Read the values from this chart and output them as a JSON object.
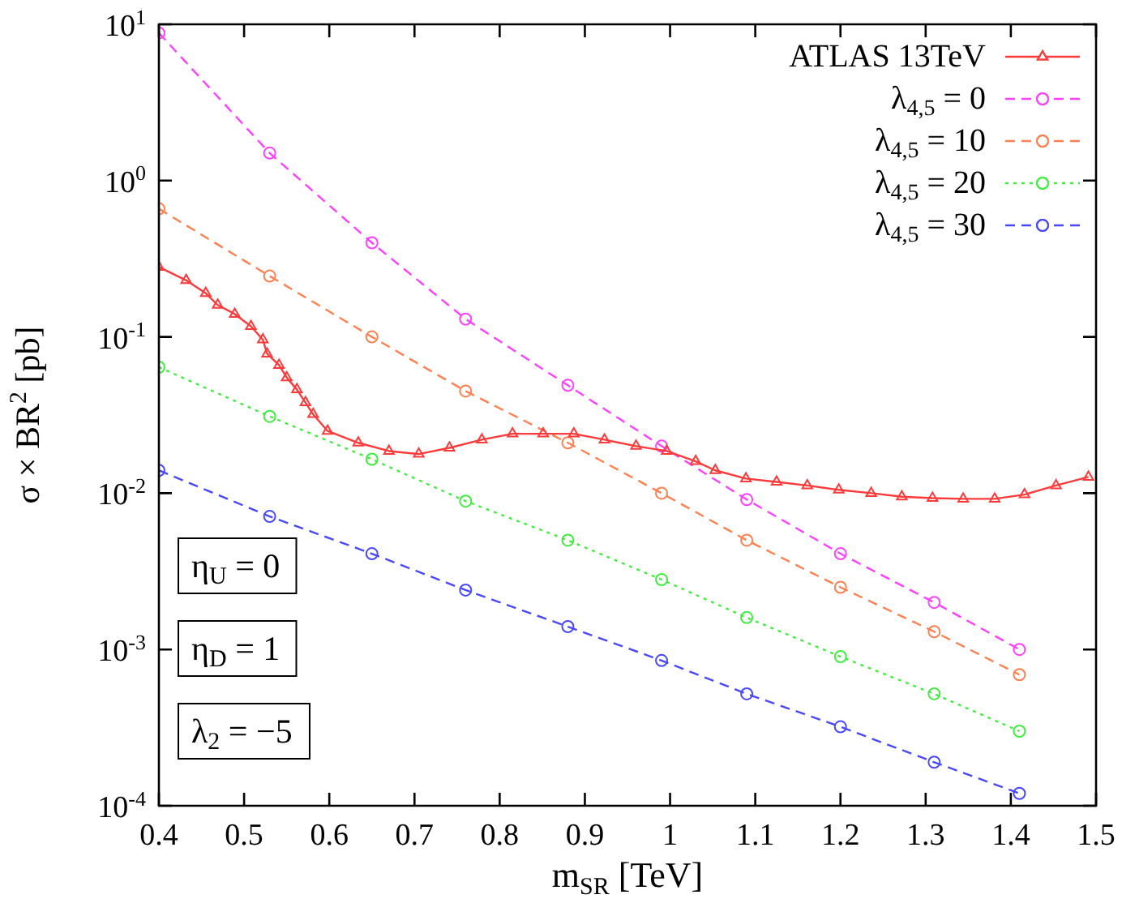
{
  "chart_data": {
    "type": "line",
    "xlabel": "m$_{SR}$ [TeV]",
    "ylabel": "σ × BR$^{2}$ [pb]",
    "log": "y",
    "xlim": [
      0.4,
      1.5
    ],
    "xticks": [
      0.4,
      0.5,
      0.6,
      0.7,
      0.8,
      0.9,
      1,
      1.1,
      1.2,
      1.3,
      1.4,
      1.5
    ],
    "ylim": [
      0.0001,
      10
    ],
    "yticks": [
      {
        "value": 0.0001,
        "label": "10$^{-4}$"
      },
      {
        "value": 0.001,
        "label": "10$^{-3}$"
      },
      {
        "value": 0.01,
        "label": "10$^{-2}$"
      },
      {
        "value": 0.1,
        "label": "10$^{-1}$"
      },
      {
        "value": 1,
        "label": "10$^{0}$"
      },
      {
        "value": 10,
        "label": "10$^{1}$"
      }
    ],
    "grid": false,
    "legend": "top right",
    "annotations": [
      "η$_{U}$ = 0",
      "η$_{D}$ = 1",
      "λ$_{2}$ = −5"
    ],
    "series": [
      {
        "name": "ATLAS 13TeV",
        "color": "#ff3a3a",
        "marker": "triangle",
        "line_style": "solid",
        "x": [
          0.4,
          0.432,
          0.455,
          0.469,
          0.489,
          0.508,
          0.522,
          0.527,
          0.541,
          0.55,
          0.562,
          0.572,
          0.581,
          0.598,
          0.634,
          0.67,
          0.705,
          0.741,
          0.779,
          0.815,
          0.851,
          0.887,
          0.923,
          0.96,
          0.996,
          1.03,
          1.053,
          1.089,
          1.125,
          1.161,
          1.198,
          1.236,
          1.272,
          1.308,
          1.344,
          1.381,
          1.416,
          1.453,
          1.491
        ],
        "values": [
          0.28,
          0.23,
          0.19,
          0.16,
          0.14,
          0.117,
          0.096,
          0.078,
          0.066,
          0.055,
          0.046,
          0.038,
          0.032,
          0.025,
          0.021,
          0.0186,
          0.0178,
          0.0195,
          0.022,
          0.024,
          0.024,
          0.024,
          0.022,
          0.02,
          0.0186,
          0.016,
          0.014,
          0.0124,
          0.0118,
          0.0112,
          0.0105,
          0.01,
          0.0095,
          0.0093,
          0.0092,
          0.0092,
          0.0098,
          0.0112,
          0.0127
        ]
      },
      {
        "name": "λ$_{4,5}$ = 0",
        "color": "#ff40ff",
        "marker": "circle",
        "line_style": "dashed",
        "x": [
          0.4,
          0.53,
          0.65,
          0.76,
          0.88,
          0.99,
          1.09,
          1.2,
          1.31,
          1.41
        ],
        "values": [
          8.8,
          1.5,
          0.4,
          0.13,
          0.049,
          0.02,
          0.0091,
          0.0041,
          0.002,
          0.001
        ]
      },
      {
        "name": "λ$_{4,5}$ = 10",
        "color": "#ff8050",
        "marker": "circle",
        "line_style": "dashed",
        "x": [
          0.4,
          0.53,
          0.65,
          0.76,
          0.88,
          0.99,
          1.09,
          1.2,
          1.31,
          1.41
        ],
        "values": [
          0.66,
          0.245,
          0.1,
          0.045,
          0.021,
          0.01,
          0.005,
          0.0025,
          0.0013,
          0.00069
        ]
      },
      {
        "name": "λ$_{4,5}$ = 20",
        "color": "#40ee40",
        "marker": "circle",
        "line_style": "dotted",
        "x": [
          0.4,
          0.53,
          0.65,
          0.76,
          0.88,
          0.99,
          1.09,
          1.2,
          1.31,
          1.41
        ],
        "values": [
          0.064,
          0.031,
          0.0165,
          0.0089,
          0.005,
          0.0028,
          0.0016,
          0.0009,
          0.00052,
          0.0003
        ]
      },
      {
        "name": "λ$_{4,5}$ = 30",
        "color": "#4848ff",
        "marker": "circle",
        "line_style": "dashed",
        "x": [
          0.4,
          0.53,
          0.65,
          0.76,
          0.88,
          0.99,
          1.09,
          1.2,
          1.31,
          1.41
        ],
        "values": [
          0.014,
          0.0071,
          0.0041,
          0.0024,
          0.0014,
          0.00085,
          0.00052,
          0.00032,
          0.00019,
          0.00012
        ]
      }
    ]
  }
}
